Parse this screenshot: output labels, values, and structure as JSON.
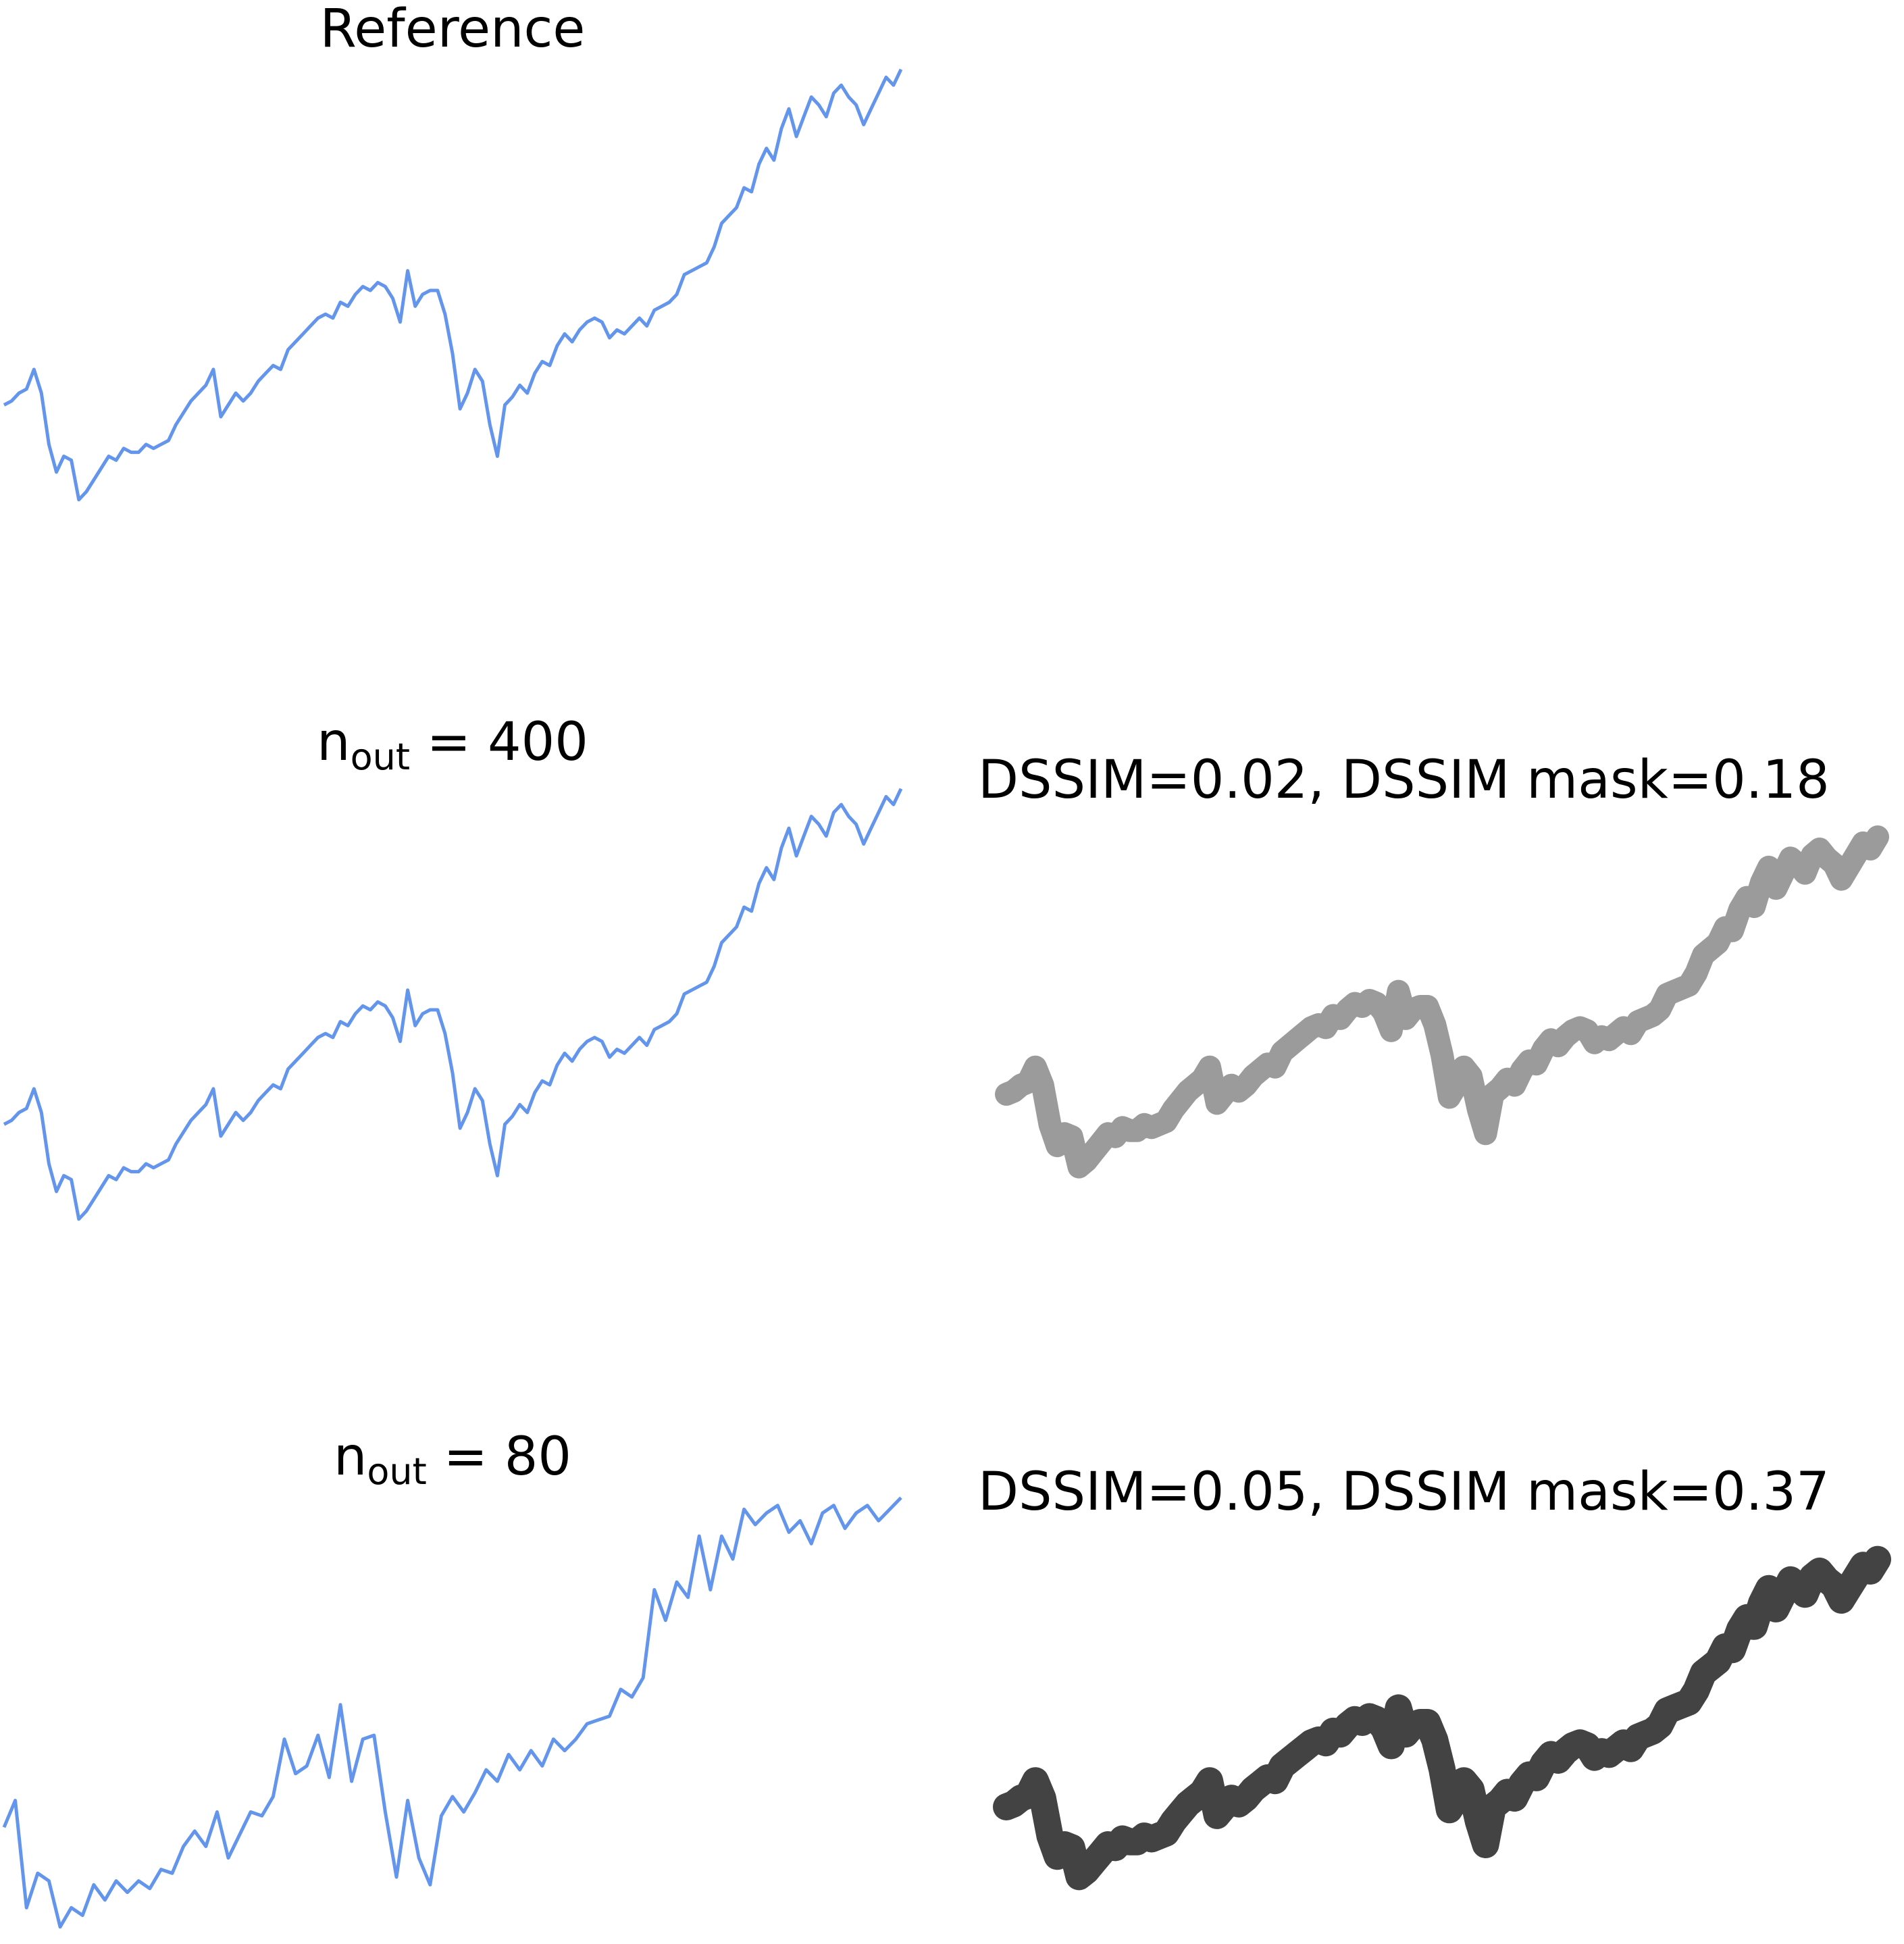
{
  "panels": {
    "reference": {
      "title": "Reference"
    },
    "n400": {
      "label_main": "n",
      "label_sub": "out",
      "label_rest": " = 400",
      "metric": "DSSIM=0.02, DSSIM mask=0.18"
    },
    "n80": {
      "label_main": "n",
      "label_sub": "out",
      "label_rest": " = 80",
      "metric": "DSSIM=0.05, DSSIM mask=0.37"
    }
  },
  "colors": {
    "line": "#6495ED",
    "mask": "#222222"
  },
  "chart_data": [
    {
      "type": "line",
      "title": "Reference",
      "axes": "off",
      "x": [
        0,
        1,
        2,
        3,
        4,
        5,
        6,
        7,
        8,
        9,
        10,
        11,
        12,
        13,
        14,
        15,
        16,
        17,
        18,
        19,
        20,
        21,
        22,
        23,
        24,
        25,
        26,
        27,
        28,
        29,
        30,
        31,
        32,
        33,
        34,
        35,
        36,
        37,
        38,
        39,
        40,
        41,
        42,
        43,
        44,
        45,
        46,
        47,
        48,
        49,
        50,
        51,
        52,
        53,
        54,
        55,
        56,
        57,
        58,
        59,
        60,
        61,
        62,
        63,
        64,
        65,
        66,
        67,
        68,
        69,
        70,
        71,
        72,
        73,
        74,
        75,
        76,
        77,
        78,
        79,
        80,
        81,
        82,
        83,
        84,
        85,
        86,
        87,
        88,
        89,
        90,
        91,
        92,
        93,
        94,
        95,
        96,
        97,
        98,
        99,
        100,
        101,
        102,
        103,
        104,
        105,
        106,
        107,
        108,
        109,
        110,
        111,
        112,
        113,
        114,
        115,
        116,
        117,
        118,
        119,
        120
      ],
      "y": [
        0.27,
        0.28,
        0.3,
        0.31,
        0.36,
        0.3,
        0.17,
        0.1,
        0.14,
        0.13,
        0.03,
        0.05,
        0.08,
        0.11,
        0.14,
        0.13,
        0.16,
        0.15,
        0.15,
        0.17,
        0.16,
        0.17,
        0.18,
        0.22,
        0.25,
        0.28,
        0.3,
        0.32,
        0.36,
        0.24,
        0.27,
        0.3,
        0.28,
        0.3,
        0.33,
        0.35,
        0.37,
        0.36,
        0.41,
        0.43,
        0.45,
        0.47,
        0.49,
        0.5,
        0.49,
        0.53,
        0.52,
        0.55,
        0.57,
        0.56,
        0.58,
        0.57,
        0.54,
        0.48,
        0.61,
        0.52,
        0.55,
        0.56,
        0.56,
        0.5,
        0.4,
        0.26,
        0.3,
        0.36,
        0.33,
        0.22,
        0.14,
        0.27,
        0.29,
        0.32,
        0.3,
        0.35,
        0.38,
        0.37,
        0.42,
        0.45,
        0.43,
        0.46,
        0.48,
        0.49,
        0.48,
        0.44,
        0.46,
        0.45,
        0.47,
        0.49,
        0.47,
        0.51,
        0.52,
        0.53,
        0.55,
        0.6,
        0.61,
        0.62,
        0.63,
        0.67,
        0.73,
        0.75,
        0.77,
        0.82,
        0.81,
        0.88,
        0.92,
        0.89,
        0.97,
        1.02,
        0.95,
        1.0,
        1.05,
        1.03,
        1.0,
        1.06,
        1.08,
        1.05,
        1.03,
        0.98,
        1.02,
        1.06,
        1.1,
        1.08,
        1.12
      ]
    },
    {
      "type": "line",
      "title": "n_out = 400",
      "axes": "off",
      "x": [
        0,
        1,
        2,
        3,
        4,
        5,
        6,
        7,
        8,
        9,
        10,
        11,
        12,
        13,
        14,
        15,
        16,
        17,
        18,
        19,
        20,
        21,
        22,
        23,
        24,
        25,
        26,
        27,
        28,
        29,
        30,
        31,
        32,
        33,
        34,
        35,
        36,
        37,
        38,
        39,
        40,
        41,
        42,
        43,
        44,
        45,
        46,
        47,
        48,
        49,
        50,
        51,
        52,
        53,
        54,
        55,
        56,
        57,
        58,
        59,
        60,
        61,
        62,
        63,
        64,
        65,
        66,
        67,
        68,
        69,
        70,
        71,
        72,
        73,
        74,
        75,
        76,
        77,
        78,
        79,
        80,
        81,
        82,
        83,
        84,
        85,
        86,
        87,
        88,
        89,
        90,
        91,
        92,
        93,
        94,
        95,
        96,
        97,
        98,
        99,
        100,
        101,
        102,
        103,
        104,
        105,
        106,
        107,
        108,
        109,
        110,
        111,
        112,
        113,
        114,
        115,
        116,
        117,
        118,
        119,
        120
      ],
      "y": [
        0.27,
        0.28,
        0.3,
        0.31,
        0.36,
        0.3,
        0.17,
        0.1,
        0.14,
        0.13,
        0.03,
        0.05,
        0.08,
        0.11,
        0.14,
        0.13,
        0.16,
        0.15,
        0.15,
        0.17,
        0.16,
        0.17,
        0.18,
        0.22,
        0.25,
        0.28,
        0.3,
        0.32,
        0.36,
        0.24,
        0.27,
        0.3,
        0.28,
        0.3,
        0.33,
        0.35,
        0.37,
        0.36,
        0.41,
        0.43,
        0.45,
        0.47,
        0.49,
        0.5,
        0.49,
        0.53,
        0.52,
        0.55,
        0.57,
        0.56,
        0.58,
        0.57,
        0.54,
        0.48,
        0.61,
        0.52,
        0.55,
        0.56,
        0.56,
        0.5,
        0.4,
        0.26,
        0.3,
        0.36,
        0.33,
        0.22,
        0.14,
        0.27,
        0.29,
        0.32,
        0.3,
        0.35,
        0.38,
        0.37,
        0.42,
        0.45,
        0.43,
        0.46,
        0.48,
        0.49,
        0.48,
        0.44,
        0.46,
        0.45,
        0.47,
        0.49,
        0.47,
        0.51,
        0.52,
        0.53,
        0.55,
        0.6,
        0.61,
        0.62,
        0.63,
        0.67,
        0.73,
        0.75,
        0.77,
        0.82,
        0.81,
        0.88,
        0.92,
        0.89,
        0.97,
        1.02,
        0.95,
        1.0,
        1.05,
        1.03,
        1.0,
        1.06,
        1.08,
        1.05,
        1.03,
        0.98,
        1.02,
        1.06,
        1.1,
        1.08,
        1.12
      ]
    },
    {
      "type": "line",
      "title": "n_out = 80",
      "axes": "off",
      "x": [
        0,
        1.5,
        3,
        4.5,
        6,
        7.5,
        9,
        10.5,
        12,
        13.5,
        15,
        16.5,
        18,
        19.5,
        21,
        22.5,
        24,
        25.5,
        27,
        28.5,
        30,
        31.5,
        33,
        34.5,
        36,
        37.5,
        39,
        40.5,
        42,
        43.5,
        45,
        46.5,
        48,
        49.5,
        51,
        52.5,
        54,
        55.5,
        57,
        58.5,
        60,
        61.5,
        63,
        64.5,
        66,
        67.5,
        69,
        70.5,
        72,
        73.5,
        75,
        76.5,
        78,
        79.5,
        81,
        82.5,
        84,
        85.5,
        87,
        88.5,
        90,
        91.5,
        93,
        94.5,
        96,
        97.5,
        99,
        100.5,
        102,
        103.5,
        105,
        106.5,
        108,
        109.5,
        111,
        112.5,
        114,
        115.5,
        117,
        118.5,
        120
      ],
      "y": [
        0.26,
        0.33,
        0.05,
        0.14,
        0.12,
        0.0,
        0.05,
        0.03,
        0.11,
        0.07,
        0.12,
        0.09,
        0.12,
        0.1,
        0.15,
        0.14,
        0.21,
        0.25,
        0.21,
        0.3,
        0.18,
        0.24,
        0.3,
        0.29,
        0.34,
        0.49,
        0.4,
        0.42,
        0.5,
        0.39,
        0.58,
        0.38,
        0.49,
        0.5,
        0.3,
        0.13,
        0.33,
        0.18,
        0.11,
        0.29,
        0.34,
        0.3,
        0.35,
        0.41,
        0.38,
        0.45,
        0.41,
        0.46,
        0.42,
        0.49,
        0.46,
        0.49,
        0.53,
        0.54,
        0.55,
        0.62,
        0.6,
        0.65,
        0.88,
        0.8,
        0.9,
        0.86,
        1.02,
        0.88,
        1.02,
        0.96,
        1.09,
        1.05,
        1.08,
        1.1,
        1.03,
        1.06,
        1.0,
        1.08,
        1.1,
        1.04,
        1.08,
        1.1,
        1.06,
        1.09,
        1.12
      ]
    }
  ]
}
